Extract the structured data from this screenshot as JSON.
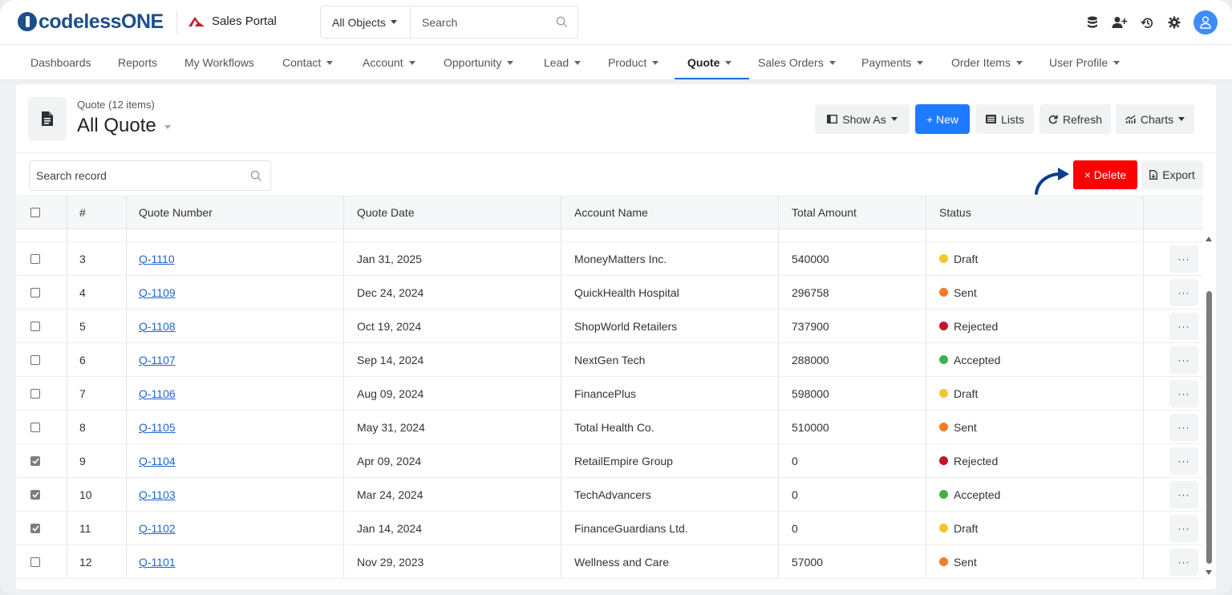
{
  "app": {
    "logo_text": "codelessONE",
    "name": "Sales Portal"
  },
  "search": {
    "scope": "All Objects",
    "placeholder": "Search"
  },
  "nav": {
    "items": [
      {
        "label": "Dashboards",
        "dropdown": false
      },
      {
        "label": "Reports",
        "dropdown": false
      },
      {
        "label": "My Workflows",
        "dropdown": false
      },
      {
        "label": "Contact",
        "dropdown": true
      },
      {
        "label": "Account",
        "dropdown": true
      },
      {
        "label": "Opportunity",
        "dropdown": true
      },
      {
        "label": "Lead",
        "dropdown": true
      },
      {
        "label": "Product",
        "dropdown": true
      },
      {
        "label": "Quote",
        "dropdown": true,
        "active": true
      },
      {
        "label": "Sales Orders",
        "dropdown": true
      },
      {
        "label": "Payments",
        "dropdown": true
      },
      {
        "label": "Order Items",
        "dropdown": true
      },
      {
        "label": "User Profile",
        "dropdown": true
      }
    ]
  },
  "page": {
    "subtitle": "Quote (12 items)",
    "title": "All Quote"
  },
  "toolbar": {
    "show_as": "Show As",
    "new": "+ New",
    "lists": "Lists",
    "refresh": "Refresh",
    "charts": "Charts",
    "delete": "× Delete",
    "export": "Export"
  },
  "record_search": {
    "placeholder": "Search record"
  },
  "table": {
    "columns": [
      "#",
      "Quote Number",
      "Quote Date",
      "Account Name",
      "Total Amount",
      "Status"
    ],
    "rows": [
      {
        "num": "3",
        "quote": "Q-1110",
        "date": "Jan 31, 2025",
        "account": "MoneyMatters Inc.",
        "amount": "540000",
        "status": "Draft",
        "checked": false
      },
      {
        "num": "4",
        "quote": "Q-1109",
        "date": "Dec 24, 2024",
        "account": "QuickHealth Hospital",
        "amount": "296758",
        "status": "Sent",
        "checked": false
      },
      {
        "num": "5",
        "quote": "Q-1108",
        "date": "Oct 19, 2024",
        "account": "ShopWorld Retailers",
        "amount": "737900",
        "status": "Rejected",
        "checked": false
      },
      {
        "num": "6",
        "quote": "Q-1107",
        "date": "Sep 14, 2024",
        "account": "NextGen Tech",
        "amount": "288000",
        "status": "Accepted",
        "checked": false
      },
      {
        "num": "7",
        "quote": "Q-1106",
        "date": "Aug 09, 2024",
        "account": "FinancePlus",
        "amount": "598000",
        "status": "Draft",
        "checked": false
      },
      {
        "num": "8",
        "quote": "Q-1105",
        "date": "May 31, 2024",
        "account": "Total Health Co.",
        "amount": "510000",
        "status": "Sent",
        "checked": false
      },
      {
        "num": "9",
        "quote": "Q-1104",
        "date": "Apr 09, 2024",
        "account": "RetailEmpire Group",
        "amount": "0",
        "status": "Rejected",
        "checked": true
      },
      {
        "num": "10",
        "quote": "Q-1103",
        "date": "Mar 24, 2024",
        "account": "TechAdvancers",
        "amount": "0",
        "status": "Accepted",
        "checked": true
      },
      {
        "num": "11",
        "quote": "Q-1102",
        "date": "Jan 14, 2024",
        "account": "FinanceGuardians Ltd.",
        "amount": "0",
        "status": "Draft",
        "checked": true
      },
      {
        "num": "12",
        "quote": "Q-1101",
        "date": "Nov 29, 2023",
        "account": "Wellness and Care",
        "amount": "57000",
        "status": "Sent",
        "checked": false
      }
    ],
    "row_action_label": "···"
  },
  "status_colors": {
    "Draft": "#f5c431",
    "Sent": "#f07d2a",
    "Rejected": "#c0162a",
    "Accepted": "#3fb14a"
  },
  "colors": {
    "brand": "#1b4f8c",
    "primary": "#1e7bff",
    "danger": "#ff0000",
    "link": "#1e66d0",
    "arrow": "#0b3d91"
  },
  "icons": {
    "search": "magnifier-icon",
    "database": "database-icon",
    "add_user": "add-user-icon",
    "history": "history-icon",
    "settings": "gear-icon",
    "user": "user-icon",
    "document": "document-icon"
  }
}
